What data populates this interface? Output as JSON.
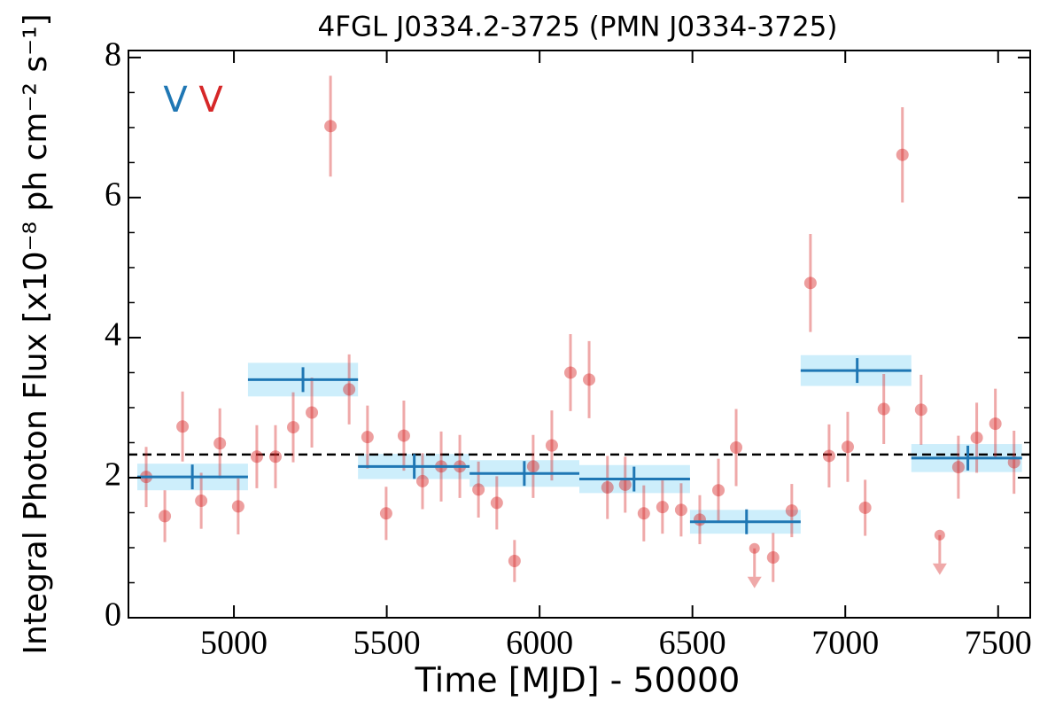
{
  "chart_data": {
    "type": "lightcurve",
    "title": "4FGL J0334.2-3725 (PMN J0334-3725)",
    "xlabel": "Time [MJD] - 50000",
    "ylabel": "Integral Photon Flux [x10⁻⁸ ph cm⁻² s⁻¹]",
    "xlim": [
      4655,
      7605
    ],
    "ylim": [
      0,
      8.1
    ],
    "xticks": [
      5000,
      5500,
      6000,
      6500,
      7000,
      7500
    ],
    "yticks": [
      0,
      2,
      4,
      6,
      8
    ],
    "yminor_ticks": [
      0.5,
      1,
      1.5,
      2.5,
      3,
      3.5,
      4.5,
      5,
      5.5,
      6.5,
      7,
      7.5
    ],
    "points": {
      "color": "#d62728",
      "x": [
        4713,
        4774,
        4832,
        4893,
        4954,
        5014,
        5075,
        5136,
        5194,
        5255,
        5316,
        5377,
        5437,
        5498,
        5556,
        5617,
        5678,
        5739,
        5800,
        5860,
        5918,
        5979,
        6040,
        6101,
        6162,
        6222,
        6280,
        6341,
        6402,
        6463,
        6524,
        6585,
        6643,
        6764,
        6825,
        6886,
        6947,
        7008,
        7065,
        7126,
        7187,
        7248,
        7370,
        7430,
        7491,
        7552
      ],
      "values": [
        2.01,
        1.45,
        2.73,
        1.67,
        2.49,
        1.59,
        2.3,
        2.3,
        2.72,
        2.93,
        7.02,
        3.26,
        2.58,
        1.49,
        2.6,
        1.95,
        2.16,
        2.16,
        1.83,
        1.64,
        0.81,
        2.16,
        2.46,
        3.5,
        3.4,
        1.86,
        1.9,
        1.49,
        1.58,
        1.54,
        1.4,
        1.82,
        2.43,
        0.86,
        1.53,
        4.78,
        2.31,
        2.44,
        1.57,
        2.98,
        6.61,
        2.97,
        2.15,
        2.57,
        2.77,
        2.22
      ],
      "errors": [
        0.43,
        0.37,
        0.5,
        0.4,
        0.5,
        0.4,
        0.45,
        0.45,
        0.5,
        0.5,
        0.72,
        0.5,
        0.45,
        0.38,
        0.5,
        0.4,
        0.5,
        0.45,
        0.4,
        0.38,
        0.3,
        0.45,
        0.5,
        0.55,
        0.55,
        0.45,
        0.4,
        0.4,
        0.38,
        0.38,
        0.35,
        0.45,
        0.55,
        0.35,
        0.38,
        0.7,
        0.45,
        0.5,
        0.4,
        0.5,
        0.68,
        0.5,
        0.45,
        0.5,
        0.5,
        0.45
      ]
    },
    "upper_limits": {
      "color": "#d62728",
      "x": [
        6703,
        7309
      ],
      "values": [
        0.99,
        1.18
      ]
    },
    "bins": {
      "color": "#1f77b4",
      "band_color": "#cdeefb",
      "x_start": [
        4684,
        5046,
        5406,
        5771,
        6130,
        6492,
        6854,
        7216
      ],
      "x_end": [
        5046,
        5406,
        5771,
        6130,
        6492,
        6854,
        7216,
        7578
      ],
      "x_center": [
        4864,
        5226,
        5590,
        5950,
        6309,
        6677,
        7039,
        7401
      ],
      "values": [
        2.01,
        3.4,
        2.16,
        2.06,
        1.98,
        1.37,
        3.53,
        2.28
      ],
      "errors": [
        0.19,
        0.24,
        0.18,
        0.19,
        0.2,
        0.17,
        0.22,
        0.2
      ]
    },
    "mean": 2.33,
    "annotations": [
      {
        "text": "V",
        "color": "#1f77b4"
      },
      {
        "text": "V",
        "color": "#d62728"
      }
    ]
  }
}
